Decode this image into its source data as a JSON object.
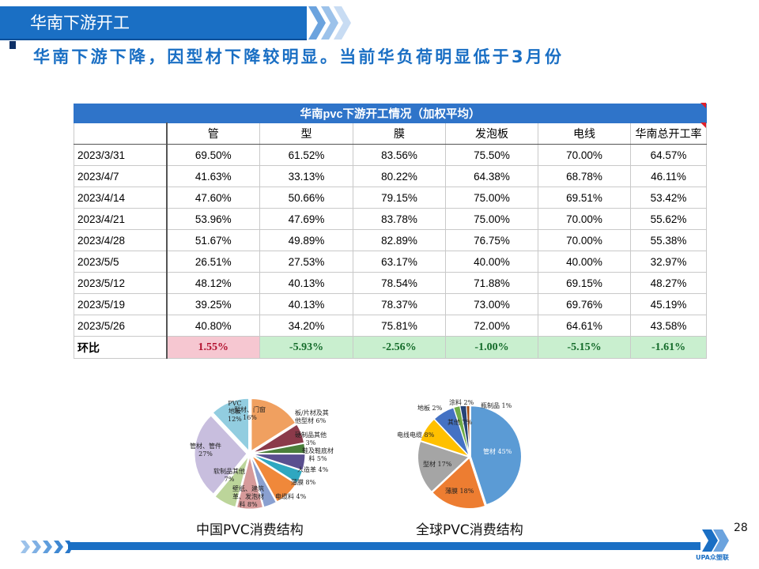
{
  "header": {
    "title": "华南下游开工",
    "subtitle": "华南下游下降，因型材下降较明显。当前华负荷明显低于3月份"
  },
  "table": {
    "caption": "华南pvc下游开工情况（加权平均）",
    "columns": [
      "",
      "管",
      "型",
      "膜",
      "发泡板",
      "电线",
      "华南总开工率"
    ],
    "rows": [
      {
        "date": "2023/3/31",
        "values": [
          "69.50%",
          "61.52%",
          "83.56%",
          "75.50%",
          "70.00%",
          "64.57%"
        ]
      },
      {
        "date": "2023/4/7",
        "values": [
          "41.63%",
          "33.13%",
          "80.22%",
          "64.38%",
          "68.78%",
          "46.11%"
        ]
      },
      {
        "date": "2023/4/14",
        "values": [
          "47.60%",
          "50.66%",
          "79.15%",
          "75.00%",
          "69.51%",
          "53.42%"
        ]
      },
      {
        "date": "2023/4/21",
        "values": [
          "53.96%",
          "47.69%",
          "83.78%",
          "75.00%",
          "70.00%",
          "55.62%"
        ]
      },
      {
        "date": "2023/4/28",
        "values": [
          "51.67%",
          "49.89%",
          "82.89%",
          "76.75%",
          "70.00%",
          "55.38%"
        ]
      },
      {
        "date": "2023/5/5",
        "values": [
          "26.51%",
          "27.53%",
          "63.17%",
          "40.00%",
          "40.00%",
          "32.97%"
        ]
      },
      {
        "date": "2023/5/12",
        "values": [
          "48.12%",
          "40.13%",
          "78.54%",
          "71.88%",
          "69.15%",
          "48.27%"
        ]
      },
      {
        "date": "2023/5/19",
        "values": [
          "39.25%",
          "40.13%",
          "78.37%",
          "73.00%",
          "69.76%",
          "45.19%"
        ]
      },
      {
        "date": "2023/5/26",
        "values": [
          "40.80%",
          "34.20%",
          "75.81%",
          "72.00%",
          "64.61%",
          "43.58%"
        ]
      }
    ],
    "ratio_row": {
      "label": "环比",
      "values": [
        "1.55%",
        "-5.93%",
        "-2.56%",
        "-1.00%",
        "-5.15%",
        "-1.61%"
      ]
    }
  },
  "china_pie": {
    "caption": "中国PVC消费结构",
    "slices": [
      {
        "label": "型材、门窗 16%",
        "value": 16,
        "color": "#f0a060"
      },
      {
        "label": "板/片材及其他型材 6%",
        "value": 6,
        "color": "#8b3a4a"
      },
      {
        "label": "硬制品其他 3%",
        "value": 3,
        "color": "#4a7f3a"
      },
      {
        "label": "鞋及鞋底材料 5%",
        "value": 5,
        "color": "#5a4f8f"
      },
      {
        "label": "人造革 4%",
        "value": 4,
        "color": "#2fa7c0"
      },
      {
        "label": "薄膜 8%",
        "value": 8,
        "color": "#f0883a"
      },
      {
        "label": "电缆料 4%",
        "value": 4,
        "color": "#8aa0d0"
      },
      {
        "label": "壁纸、建筑革、发泡材料 8%",
        "value": 8,
        "color": "#d69a9a"
      },
      {
        "label": "软制品其他 7%",
        "value": 7,
        "color": "#bcd59a"
      },
      {
        "label": "管材、管件 27%",
        "value": 27,
        "color": "#c8bede"
      },
      {
        "label": "PVC地板 12%",
        "value": 12,
        "color": "#92cde0"
      }
    ]
  },
  "global_pie": {
    "caption": "全球PVC消费结构",
    "slices": [
      {
        "label": "管材 45%",
        "value": 45,
        "color": "#5b9bd5"
      },
      {
        "label": "薄膜 18%",
        "value": 18,
        "color": "#ed7d31"
      },
      {
        "label": "型材 17%",
        "value": 17,
        "color": "#a5a5a5"
      },
      {
        "label": "电线电缆 8%",
        "value": 8,
        "color": "#ffc000"
      },
      {
        "label": "其他 7%",
        "value": 7,
        "color": "#4472c4"
      },
      {
        "label": "地板 2%",
        "value": 2,
        "color": "#70ad47"
      },
      {
        "label": "涂料 2%",
        "value": 2,
        "color": "#264478"
      },
      {
        "label": "瓶制品 1%",
        "value": 1,
        "color": "#9e480e"
      }
    ]
  },
  "footer": {
    "page_number": "28",
    "logo_text": "UPA众塑联"
  },
  "colors": {
    "brand_blue": "#1a6fc4",
    "table_header": "#2f74c9",
    "negative_bg": "#c9efcf",
    "positive_bg": "#f6c7d1"
  }
}
